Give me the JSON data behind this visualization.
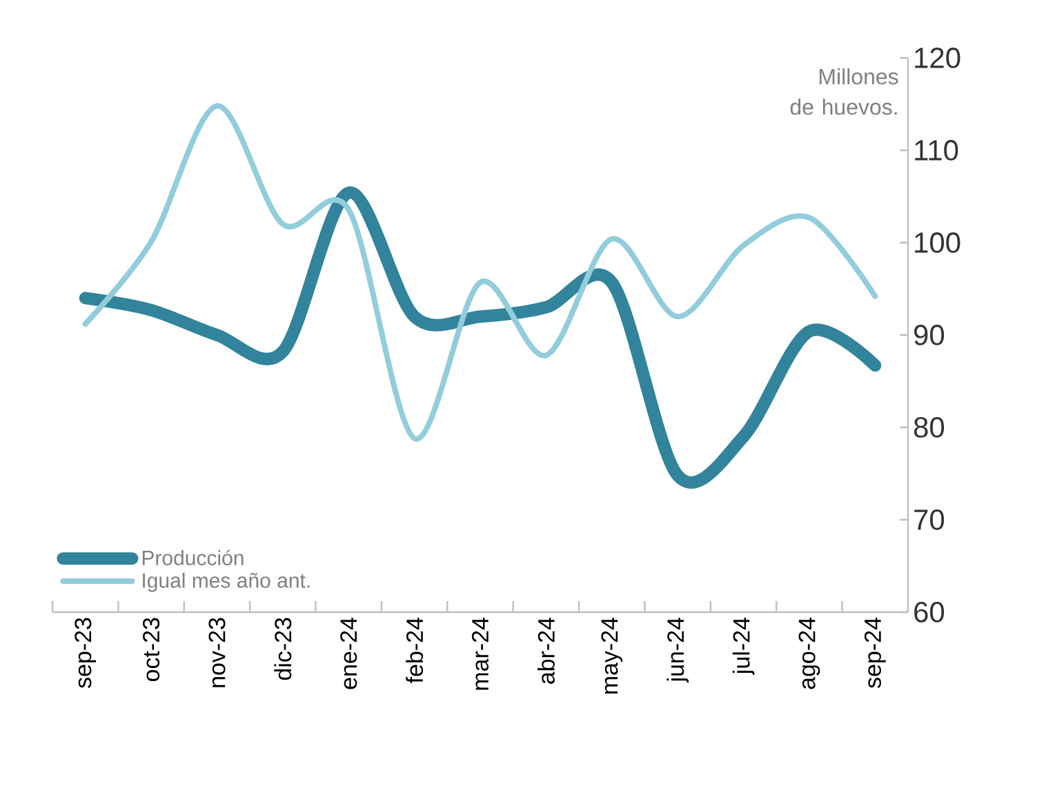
{
  "chart_data": {
    "type": "line",
    "categories": [
      "sep-23",
      "oct-23",
      "nov-23",
      "dic-23",
      "ene-24",
      "feb-24",
      "mar-24",
      "abr-24",
      "may-24",
      "jun-24",
      "jul-24",
      "ago-24",
      "sep-24"
    ],
    "series": [
      {
        "name": "Producción",
        "color": "#31849b",
        "values": [
          94,
          92.7,
          90,
          88.2,
          105.4,
          92,
          92,
          93,
          95.7,
          74.8,
          79,
          90.4,
          86.7
        ]
      },
      {
        "name": "Igual mes año ant.",
        "color": "#92cddc",
        "values": [
          91.2,
          100.1,
          114.8,
          102,
          103.6,
          78.8,
          95.7,
          87.8,
          100.4,
          92,
          99.7,
          102.7,
          94.2
        ]
      }
    ],
    "ylim": [
      60,
      120
    ],
    "yticks": [
      60,
      70,
      80,
      90,
      100,
      110,
      120
    ],
    "annotations": [
      "Millones de huevos."
    ],
    "legend": "bottom left",
    "grid": false,
    "marker": "none",
    "line_style": "solid"
  }
}
